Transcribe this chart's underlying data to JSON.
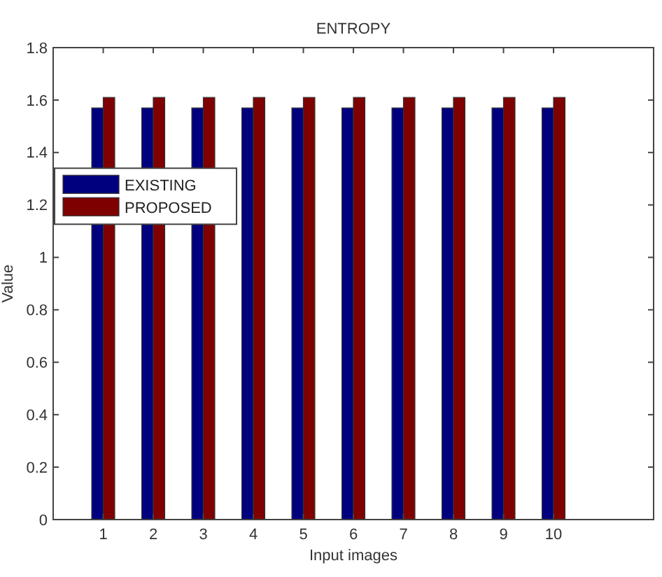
{
  "chart_data": {
    "type": "bar",
    "title": "ENTROPY",
    "xlabel": "Input images",
    "ylabel": "Value",
    "x": [
      1,
      2,
      3,
      4,
      5,
      6,
      7,
      8,
      9,
      10
    ],
    "series": [
      {
        "name": "EXISTING",
        "color": "#00007f",
        "values": [
          1.57,
          1.57,
          1.57,
          1.57,
          1.57,
          1.57,
          1.57,
          1.57,
          1.57,
          1.57
        ]
      },
      {
        "name": "PROPOSED",
        "color": "#7f0000",
        "values": [
          1.61,
          1.61,
          1.61,
          1.61,
          1.61,
          1.61,
          1.61,
          1.61,
          1.61,
          1.61
        ]
      }
    ],
    "xlim": [
      0,
      12
    ],
    "xticks": [
      1,
      2,
      3,
      4,
      5,
      6,
      7,
      8,
      9,
      10
    ],
    "ylim": [
      0,
      1.8
    ],
    "yticks": [
      0,
      0.2,
      0.4,
      0.6,
      0.8,
      1,
      1.2,
      1.4,
      1.6,
      1.8
    ],
    "legend": "left",
    "grid": false
  }
}
